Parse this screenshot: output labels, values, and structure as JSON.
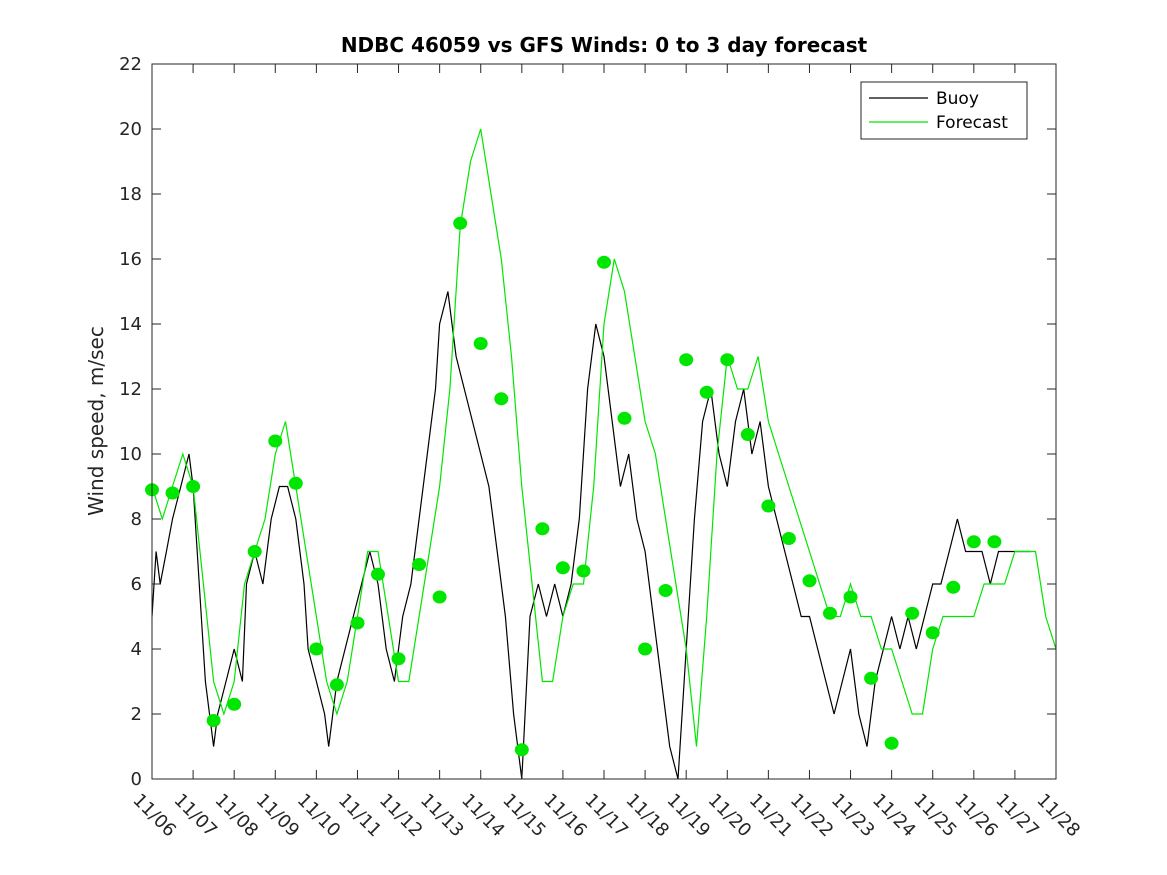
{
  "chart_data": {
    "type": "line",
    "title": "NDBC 46059 vs GFS Winds: 0 to 3 day forecast",
    "xlabel": "",
    "ylabel": "Wind speed, m/sec",
    "xlim": [
      0,
      22
    ],
    "ylim": [
      0,
      22
    ],
    "x_ticks": [
      "11/06",
      "11/07",
      "11/08",
      "11/09",
      "11/10",
      "11/11",
      "11/12",
      "11/13",
      "11/14",
      "11/15",
      "11/16",
      "11/17",
      "11/18",
      "11/19",
      "11/20",
      "11/21",
      "11/22",
      "11/23",
      "11/24",
      "11/25",
      "11/26",
      "11/27",
      "11/28"
    ],
    "y_ticks": [
      "0",
      "2",
      "4",
      "6",
      "8",
      "10",
      "12",
      "14",
      "16",
      "18",
      "20",
      "22"
    ],
    "grid": false,
    "legend": {
      "placement": "top-right",
      "entries": [
        "Buoy",
        "Forecast"
      ]
    },
    "colors": {
      "buoy": "#000000",
      "forecast": "#00e600",
      "marker": "#00e600"
    },
    "series": [
      {
        "name": "Buoy",
        "x": [
          0,
          0.1,
          0.2,
          0.35,
          0.5,
          0.7,
          0.9,
          1.0,
          1.1,
          1.3,
          1.5,
          1.6,
          1.8,
          2.0,
          2.2,
          2.3,
          2.5,
          2.7,
          2.9,
          3.1,
          3.3,
          3.5,
          3.7,
          3.8,
          4.0,
          4.2,
          4.3,
          4.5,
          4.7,
          4.9,
          5.1,
          5.3,
          5.5,
          5.7,
          5.9,
          6.1,
          6.3,
          6.5,
          6.7,
          6.9,
          7.0,
          7.2,
          7.4,
          7.6,
          7.8,
          8.0,
          8.2,
          8.4,
          8.6,
          8.8,
          9.0,
          9.2,
          9.4,
          9.6,
          9.8,
          10.0,
          10.2,
          10.4,
          10.6,
          10.8,
          11.0,
          11.2,
          11.4,
          11.6,
          11.8,
          12.0,
          12.2,
          12.4,
          12.6,
          12.8,
          13.0,
          13.2,
          13.4,
          13.6,
          13.8,
          14.0,
          14.2,
          14.4,
          14.6,
          14.8,
          15.0,
          15.2,
          15.4,
          15.6,
          15.8,
          16.0,
          16.2,
          16.4,
          16.6,
          16.8,
          17.0,
          17.2,
          17.4,
          17.6,
          17.8,
          18.0,
          18.2,
          18.4,
          18.6,
          18.8,
          19.0,
          19.2,
          19.4,
          19.6,
          19.8,
          20.0,
          20.2,
          20.4,
          20.6,
          20.8,
          21.0,
          21.2,
          21.4
        ],
        "values": [
          5,
          7,
          6,
          7,
          8,
          9,
          10,
          9,
          7,
          3,
          1,
          2,
          3,
          4,
          3,
          6,
          7,
          6,
          8,
          9,
          9,
          8,
          6,
          4,
          3,
          2,
          1,
          3,
          4,
          5,
          6,
          7,
          6,
          4,
          3,
          5,
          6,
          8,
          10,
          12,
          14,
          15,
          13,
          12,
          11,
          10,
          9,
          7,
          5,
          2,
          0,
          5,
          6,
          5,
          6,
          5,
          6,
          8,
          12,
          14,
          13,
          11,
          9,
          10,
          8,
          7,
          5,
          3,
          1,
          0,
          4,
          8,
          11,
          12,
          10,
          9,
          11,
          12,
          10,
          11,
          9,
          8,
          7,
          6,
          5,
          5,
          4,
          3,
          2,
          3,
          4,
          2,
          1,
          3,
          4,
          5,
          4,
          5,
          4,
          5,
          6,
          6,
          7,
          8,
          7,
          7,
          7,
          6,
          7,
          7,
          7,
          7,
          7
        ],
        "color": "#000000"
      },
      {
        "name": "Forecast",
        "x": [
          0,
          0.25,
          0.5,
          0.75,
          1.0,
          1.25,
          1.5,
          1.75,
          2.0,
          2.25,
          2.5,
          2.75,
          3.0,
          3.25,
          3.5,
          3.75,
          4.0,
          4.25,
          4.5,
          4.75,
          5.0,
          5.25,
          5.5,
          5.75,
          6.0,
          6.25,
          6.5,
          6.75,
          7.0,
          7.25,
          7.5,
          7.75,
          8.0,
          8.25,
          8.5,
          8.75,
          9.0,
          9.25,
          9.5,
          9.75,
          10.0,
          10.25,
          10.5,
          10.75,
          11.0,
          11.25,
          11.5,
          11.75,
          12.0,
          12.25,
          12.5,
          12.75,
          13.0,
          13.25,
          13.5,
          13.75,
          14.0,
          14.25,
          14.5,
          14.75,
          15.0,
          15.25,
          15.5,
          15.75,
          16.0,
          16.25,
          16.5,
          16.75,
          17.0,
          17.25,
          17.5,
          17.75,
          18.0,
          18.25,
          18.5,
          18.75,
          19.0,
          19.25,
          19.5,
          19.75,
          20.0,
          20.25,
          20.5,
          20.75,
          21.0,
          21.25,
          21.5,
          21.75,
          22.0
        ],
        "values": [
          9,
          8,
          9,
          10,
          9,
          6,
          3,
          2,
          3,
          6,
          7,
          8,
          10,
          11,
          9,
          7,
          5,
          3,
          2,
          3,
          5,
          7,
          7,
          5,
          3,
          3,
          5,
          7,
          9,
          12,
          17,
          19,
          20,
          18,
          16,
          13,
          9,
          6,
          3,
          3,
          5,
          6,
          6,
          9,
          14,
          16,
          15,
          13,
          11,
          10,
          8,
          6,
          4,
          1,
          5,
          10,
          13,
          12,
          12,
          13,
          11,
          10,
          9,
          8,
          7,
          6,
          5,
          5,
          6,
          5,
          5,
          4,
          4,
          3,
          2,
          2,
          4,
          5,
          5,
          5,
          5,
          6,
          6,
          6,
          7,
          7,
          7,
          5,
          4
        ],
        "color": "#00e600"
      },
      {
        "name": "",
        "x": [
          0,
          0.5,
          1.0,
          1.5,
          2.0,
          2.5,
          3.0,
          3.5,
          4.0,
          4.5,
          5.0,
          5.5,
          6.0,
          6.5,
          7.0,
          7.5,
          8.0,
          8.5,
          9.0,
          9.5,
          10.0,
          10.5,
          11.0,
          11.5,
          12.0,
          12.5,
          13.0,
          13.5,
          14.0,
          14.5,
          15.0,
          15.5,
          16.0,
          16.5,
          17.0,
          17.5,
          18.0,
          18.5,
          19.0,
          19.5,
          20.0,
          20.5
        ],
        "values": [
          8.9,
          8.8,
          9.0,
          1.8,
          2.3,
          7.0,
          10.4,
          9.1,
          4.0,
          2.9,
          4.8,
          6.3,
          3.7,
          6.6,
          5.6,
          17.1,
          13.4,
          11.7,
          0.9,
          7.7,
          6.5,
          6.4,
          15.9,
          11.1,
          4.0,
          5.8,
          12.9,
          11.9,
          12.9,
          10.6,
          8.4,
          7.4,
          6.1,
          5.1,
          5.6,
          3.1,
          1.1,
          5.1,
          4.5,
          5.9,
          7.3,
          7.3
        ]
      }
    ]
  }
}
